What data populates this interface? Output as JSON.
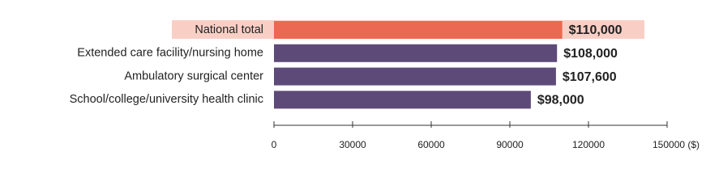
{
  "chart_data": {
    "type": "bar",
    "orientation": "horizontal",
    "categories": [
      "National total",
      "Extended care facility/nursing home",
      "Ambulatory surgical center",
      "School/college/university health clinic"
    ],
    "values": [
      110000,
      108000,
      107600,
      98000
    ],
    "value_labels": [
      "$110,000",
      "$108,000",
      "$107,600",
      "$98,000"
    ],
    "colors": [
      "#eb6952",
      "#5e4a78",
      "#5e4a78",
      "#5e4a78"
    ],
    "xlim": [
      0,
      150000
    ],
    "xticks": [
      0,
      30000,
      60000,
      90000,
      120000,
      {
        "value": 150000,
        "label": "150000 ($)"
      }
    ]
  }
}
